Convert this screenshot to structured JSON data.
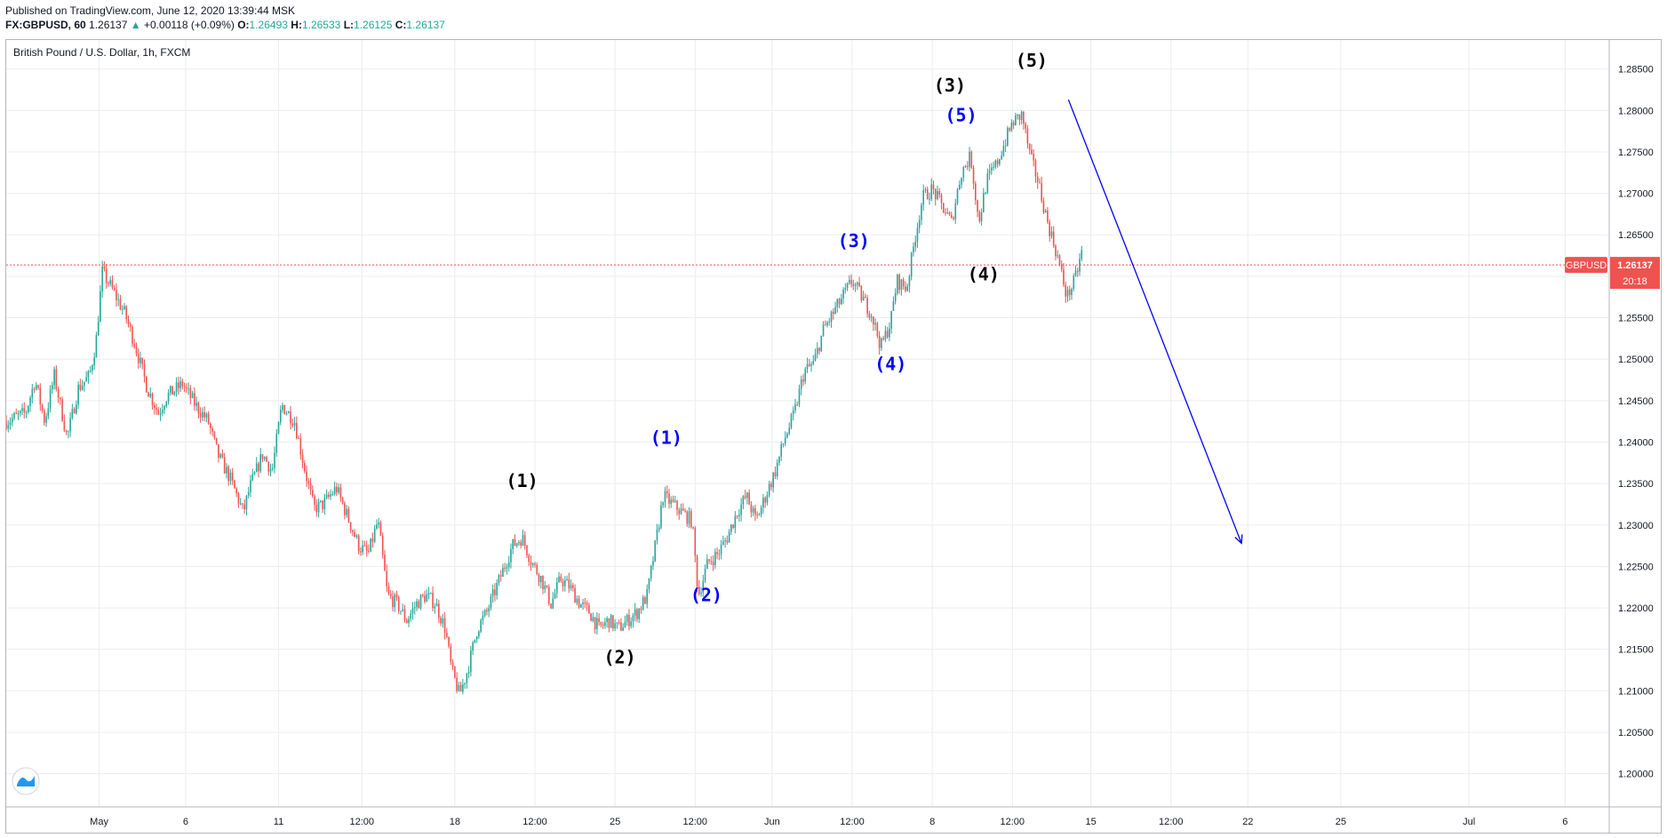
{
  "header": {
    "published": "Published on TradingView.com, June 12, 2020 13:39:44 MSK",
    "symbol": "FX:GBPUSD, 60",
    "last": "1.26137",
    "change_arrow": "▲",
    "change": "+0.00118 (+0.09%)",
    "o_label": "O:",
    "o_value": "1.26493",
    "h_label": "H:",
    "h_value": "1.26533",
    "l_label": "L:",
    "l_value": "1.26125",
    "c_label": "C:",
    "c_value": "1.26137"
  },
  "chart_data": {
    "type": "candlestick",
    "title": "British Pound / U.S. Dollar, 1h, FXCM",
    "ylim": [
      1.196,
      1.2885
    ],
    "y_ticks": [
      "1.20000",
      "1.20500",
      "1.21000",
      "1.21500",
      "1.22000",
      "1.22500",
      "1.23000",
      "1.23500",
      "1.24000",
      "1.24500",
      "1.25000",
      "1.25500",
      "1.26000",
      "1.26500",
      "1.27000",
      "1.27500",
      "1.28000",
      "1.28500"
    ],
    "x_ticks": [
      {
        "label": "May",
        "pos": 0.058
      },
      {
        "label": "6",
        "pos": 0.112
      },
      {
        "label": "11",
        "pos": 0.17
      },
      {
        "label": "12:00",
        "pos": 0.222
      },
      {
        "label": "18",
        "pos": 0.28
      },
      {
        "label": "12:00",
        "pos": 0.33
      },
      {
        "label": "25",
        "pos": 0.38
      },
      {
        "label": "12:00",
        "pos": 0.43
      },
      {
        "label": "Jun",
        "pos": 0.478
      },
      {
        "label": "12:00",
        "pos": 0.528
      },
      {
        "label": "8",
        "pos": 0.578
      },
      {
        "label": "12:00",
        "pos": 0.628
      },
      {
        "label": "15",
        "pos": 0.677
      },
      {
        "label": "12:00",
        "pos": 0.727
      },
      {
        "label": "22",
        "pos": 0.775
      },
      {
        "label": "25",
        "pos": 0.833
      },
      {
        "label": "Jul",
        "pos": 0.913
      },
      {
        "label": "6",
        "pos": 0.973
      }
    ],
    "price_path": [
      [
        0.0,
        1.2425
      ],
      [
        0.012,
        1.2435
      ],
      [
        0.018,
        1.2475
      ],
      [
        0.024,
        1.2425
      ],
      [
        0.03,
        1.248
      ],
      [
        0.038,
        1.2405
      ],
      [
        0.045,
        1.2465
      ],
      [
        0.052,
        1.248
      ],
      [
        0.056,
        1.252
      ],
      [
        0.06,
        1.2605
      ],
      [
        0.066,
        1.2585
      ],
      [
        0.074,
        1.2555
      ],
      [
        0.08,
        1.252
      ],
      [
        0.088,
        1.2465
      ],
      [
        0.095,
        1.2435
      ],
      [
        0.1,
        1.2455
      ],
      [
        0.11,
        1.247
      ],
      [
        0.118,
        1.2445
      ],
      [
        0.126,
        1.2425
      ],
      [
        0.132,
        1.2385
      ],
      [
        0.14,
        1.2355
      ],
      [
        0.148,
        1.2315
      ],
      [
        0.152,
        1.2345
      ],
      [
        0.16,
        1.2385
      ],
      [
        0.166,
        1.2365
      ],
      [
        0.172,
        1.2445
      ],
      [
        0.18,
        1.2425
      ],
      [
        0.186,
        1.237
      ],
      [
        0.192,
        1.232
      ],
      [
        0.198,
        1.2325
      ],
      [
        0.206,
        1.2345
      ],
      [
        0.212,
        1.2315
      ],
      [
        0.22,
        1.2275
      ],
      [
        0.226,
        1.2265
      ],
      [
        0.232,
        1.2305
      ],
      [
        0.238,
        1.2215
      ],
      [
        0.244,
        1.2205
      ],
      [
        0.25,
        1.2185
      ],
      [
        0.256,
        1.2205
      ],
      [
        0.262,
        1.2215
      ],
      [
        0.268,
        1.2205
      ],
      [
        0.274,
        1.2175
      ],
      [
        0.278,
        1.2125
      ],
      [
        0.283,
        1.2095
      ],
      [
        0.288,
        1.2125
      ],
      [
        0.294,
        1.2175
      ],
      [
        0.3,
        1.2195
      ],
      [
        0.306,
        1.2225
      ],
      [
        0.312,
        1.2255
      ],
      [
        0.316,
        1.2275
      ],
      [
        0.322,
        1.2285
      ],
      [
        0.328,
        1.2255
      ],
      [
        0.334,
        1.2235
      ],
      [
        0.34,
        1.2205
      ],
      [
        0.346,
        1.2235
      ],
      [
        0.352,
        1.2225
      ],
      [
        0.358,
        1.2205
      ],
      [
        0.364,
        1.2195
      ],
      [
        0.37,
        1.2175
      ],
      [
        0.376,
        1.2185
      ],
      [
        0.382,
        1.2175
      ],
      [
        0.388,
        1.2185
      ],
      [
        0.394,
        1.2195
      ],
      [
        0.4,
        1.2215
      ],
      [
        0.406,
        1.2285
      ],
      [
        0.41,
        1.2335
      ],
      [
        0.416,
        1.2325
      ],
      [
        0.422,
        1.2315
      ],
      [
        0.428,
        1.2305
      ],
      [
        0.432,
        1.2215
      ],
      [
        0.438,
        1.2255
      ],
      [
        0.444,
        1.2265
      ],
      [
        0.45,
        1.2285
      ],
      [
        0.456,
        1.2315
      ],
      [
        0.462,
        1.2335
      ],
      [
        0.468,
        1.2305
      ],
      [
        0.474,
        1.2335
      ],
      [
        0.48,
        1.2365
      ],
      [
        0.486,
        1.2405
      ],
      [
        0.492,
        1.2435
      ],
      [
        0.498,
        1.2485
      ],
      [
        0.504,
        1.2495
      ],
      [
        0.51,
        1.2535
      ],
      [
        0.516,
        1.2555
      ],
      [
        0.522,
        1.2575
      ],
      [
        0.528,
        1.2595
      ],
      [
        0.534,
        1.2575
      ],
      [
        0.54,
        1.2555
      ],
      [
        0.546,
        1.2515
      ],
      [
        0.552,
        1.2545
      ],
      [
        0.556,
        1.2595
      ],
      [
        0.562,
        1.2585
      ],
      [
        0.568,
        1.2655
      ],
      [
        0.572,
        1.2695
      ],
      [
        0.578,
        1.2705
      ],
      [
        0.584,
        1.2685
      ],
      [
        0.59,
        1.2665
      ],
      [
        0.596,
        1.2725
      ],
      [
        0.602,
        1.2745
      ],
      [
        0.607,
        1.2665
      ],
      [
        0.612,
        1.2715
      ],
      [
        0.618,
        1.2735
      ],
      [
        0.624,
        1.2765
      ],
      [
        0.628,
        1.2785
      ],
      [
        0.634,
        1.2795
      ],
      [
        0.639,
        1.2745
      ],
      [
        0.644,
        1.2715
      ],
      [
        0.65,
        1.2665
      ],
      [
        0.656,
        1.2625
      ],
      [
        0.662,
        1.2575
      ],
      [
        0.667,
        1.2595
      ],
      [
        0.672,
        1.2635
      ]
    ],
    "current_price": 1.26137,
    "price_tag": {
      "symbol": "GBPUSD",
      "price": "1.26137",
      "countdown": "20:18"
    },
    "annotations": [
      {
        "text": "(1)",
        "color": "black",
        "x": 0.322,
        "y": 1.2346
      },
      {
        "text": "(2)",
        "color": "black",
        "x": 0.383,
        "y": 1.2133
      },
      {
        "text": "(3)",
        "color": "black",
        "x": 0.589,
        "y": 1.2823
      },
      {
        "text": "(4)",
        "color": "black",
        "x": 0.61,
        "y": 1.2595
      },
      {
        "text": "(5)",
        "color": "black",
        "x": 0.64,
        "y": 1.2853
      },
      {
        "text": "(1)",
        "color": "blue",
        "x": 0.412,
        "y": 1.2398
      },
      {
        "text": "(2)",
        "color": "blue",
        "x": 0.437,
        "y": 1.2208
      },
      {
        "text": "(3)",
        "color": "blue",
        "x": 0.529,
        "y": 1.2635
      },
      {
        "text": "(4)",
        "color": "blue",
        "x": 0.552,
        "y": 1.2487
      },
      {
        "text": "(5)",
        "color": "blue",
        "x": 0.596,
        "y": 1.2787
      }
    ],
    "forecast_arrow": {
      "from": [
        0.663,
        1.2813
      ],
      "to": [
        0.771,
        1.2278
      ],
      "color": "#0000ff"
    },
    "colors": {
      "up": "#26a69a",
      "down": "#ef5350",
      "grid": "#e9ecf1",
      "price_line": "#ef5350",
      "wave_black": "#000000",
      "wave_blue": "#0000ff"
    }
  }
}
